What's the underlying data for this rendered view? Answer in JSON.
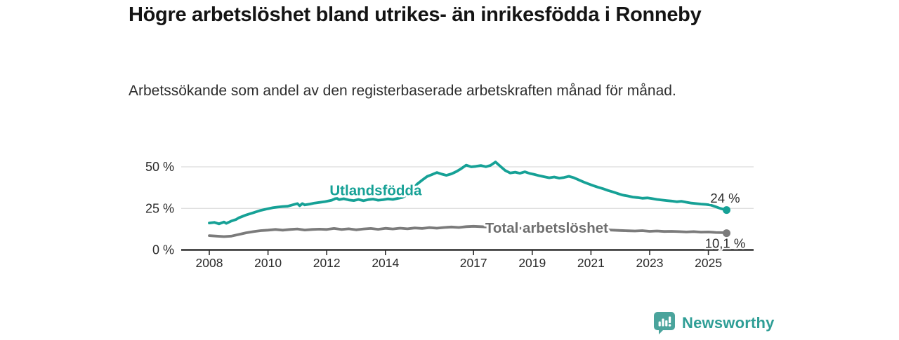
{
  "header": {
    "title": "Högre arbetslöshet bland utrikes- än inrikesfödda i Ronneby",
    "subtitle": "Arbetssökande som andel av den registerbaserade arbetskraften månad för månad."
  },
  "branding": {
    "wordmark": "Newsworthy",
    "logo_icon": "newsworthy-speech-bubble-bar-chart",
    "logo_color": "#4aa49c",
    "wordmark_color": "#2f9e96"
  },
  "colors": {
    "accent_teal": "#16a196",
    "line_gray": "#7b7b7b",
    "label_gray": "#6e6e6e",
    "axis_dark": "#2d2d2d",
    "gridline": "#dcdcdc",
    "text_dark": "#2b2b2b"
  },
  "chart_data": {
    "type": "line",
    "title": "Högre arbetslöshet bland utrikes- än inrikesfödda i Ronneby",
    "subtitle": "Arbetssökande som andel av den registerbaserade arbetskraften månad för månad.",
    "xlabel": "",
    "ylabel": "",
    "x_range": [
      2007.8,
      2026.1
    ],
    "ylim": [
      0,
      56
    ],
    "grid": "horizontal",
    "legend_position": "inline-labels",
    "yticks": [
      {
        "v": 0,
        "label": "0 %"
      },
      {
        "v": 25,
        "label": "25 %"
      },
      {
        "v": 50,
        "label": "50 %"
      }
    ],
    "xticks": [
      2008,
      2010,
      2012,
      2014,
      2017,
      2019,
      2021,
      2023,
      2025
    ],
    "series": [
      {
        "name": "Utlandsfödda",
        "color": "#16a196",
        "end_label": "24 %",
        "end_label_side": "above",
        "label_at": {
          "x": 2012.1,
          "y": 33.0
        },
        "x": [
          2008.0,
          2008.17,
          2008.33,
          2008.5,
          2008.58,
          2008.75,
          2008.92,
          2009.0,
          2009.25,
          2009.5,
          2009.75,
          2010.0,
          2010.17,
          2010.33,
          2010.5,
          2010.67,
          2010.83,
          2011.0,
          2011.08,
          2011.17,
          2011.25,
          2011.42,
          2011.58,
          2011.75,
          2011.92,
          2012.0,
          2012.17,
          2012.33,
          2012.42,
          2012.58,
          2012.75,
          2012.92,
          2013.08,
          2013.25,
          2013.42,
          2013.58,
          2013.75,
          2013.92,
          2014.08,
          2014.25,
          2014.42,
          2014.58,
          2014.75,
          2014.92,
          2015.08,
          2015.25,
          2015.42,
          2015.58,
          2015.75,
          2015.92,
          2016.08,
          2016.25,
          2016.42,
          2016.58,
          2016.75,
          2016.92,
          2017.08,
          2017.25,
          2017.42,
          2017.58,
          2017.75,
          2017.92,
          2018.08,
          2018.25,
          2018.42,
          2018.58,
          2018.75,
          2018.92,
          2019.08,
          2019.25,
          2019.42,
          2019.58,
          2019.75,
          2019.92,
          2020.08,
          2020.25,
          2020.42,
          2020.58,
          2020.75,
          2020.92,
          2021.08,
          2021.25,
          2021.42,
          2021.58,
          2021.75,
          2021.92,
          2022.08,
          2022.25,
          2022.42,
          2022.58,
          2022.75,
          2022.92,
          2023.08,
          2023.25,
          2023.42,
          2023.58,
          2023.75,
          2023.92,
          2024.08,
          2024.25,
          2024.42,
          2024.58,
          2024.75,
          2024.92,
          2025.08,
          2025.25,
          2025.42,
          2025.62
        ],
        "values": [
          16.2,
          16.6,
          15.7,
          16.8,
          16.0,
          17.4,
          18.4,
          19.3,
          21.0,
          22.4,
          23.8,
          24.8,
          25.4,
          25.8,
          26.1,
          26.3,
          27.1,
          27.9,
          26.6,
          27.9,
          27.1,
          27.6,
          28.2,
          28.6,
          29.0,
          29.3,
          29.9,
          31.2,
          30.3,
          30.8,
          30.1,
          29.7,
          30.4,
          29.6,
          30.3,
          30.6,
          29.9,
          30.2,
          30.7,
          30.4,
          31.0,
          31.6,
          33.2,
          36.2,
          39.6,
          42.0,
          44.2,
          45.3,
          46.6,
          45.6,
          44.9,
          45.8,
          47.2,
          48.9,
          51.0,
          50.0,
          50.3,
          50.8,
          50.1,
          50.9,
          52.9,
          50.2,
          47.8,
          46.3,
          46.8,
          46.1,
          47.0,
          46.0,
          45.4,
          44.6,
          44.0,
          43.4,
          43.9,
          43.2,
          43.6,
          44.3,
          43.4,
          42.2,
          40.9,
          39.7,
          38.7,
          37.7,
          36.8,
          35.8,
          34.9,
          33.9,
          33.0,
          32.5,
          31.8,
          31.5,
          31.1,
          31.3,
          30.9,
          30.4,
          30.0,
          29.7,
          29.4,
          29.0,
          29.3,
          28.7,
          28.2,
          27.9,
          27.6,
          27.4,
          27.0,
          26.0,
          24.9,
          24.0
        ]
      },
      {
        "name": "Total arbetslöshet",
        "color": "#7b7b7b",
        "label_color": "#6e6e6e",
        "end_label": "10,1 %",
        "end_label_side": "below",
        "label_at": {
          "x": 2017.4,
          "y": 10.4
        },
        "x": [
          2008.0,
          2008.25,
          2008.5,
          2008.75,
          2009.0,
          2009.25,
          2009.5,
          2009.75,
          2010.0,
          2010.25,
          2010.5,
          2010.75,
          2011.0,
          2011.25,
          2011.5,
          2011.75,
          2012.0,
          2012.25,
          2012.5,
          2012.75,
          2013.0,
          2013.25,
          2013.5,
          2013.75,
          2014.0,
          2014.25,
          2014.5,
          2014.75,
          2015.0,
          2015.25,
          2015.5,
          2015.75,
          2016.0,
          2016.25,
          2016.5,
          2016.75,
          2017.0,
          2017.25,
          2017.5,
          2017.75,
          2018.0,
          2018.25,
          2018.5,
          2018.75,
          2019.0,
          2019.25,
          2019.5,
          2019.75,
          2020.0,
          2020.25,
          2020.5,
          2020.75,
          2021.0,
          2021.25,
          2021.5,
          2021.75,
          2022.0,
          2022.25,
          2022.5,
          2022.75,
          2023.0,
          2023.25,
          2023.5,
          2023.75,
          2024.0,
          2024.25,
          2024.5,
          2024.75,
          2025.0,
          2025.25,
          2025.5,
          2025.62
        ],
        "values": [
          8.6,
          8.3,
          8.0,
          8.3,
          9.3,
          10.3,
          11.0,
          11.6,
          11.9,
          12.3,
          11.9,
          12.3,
          12.6,
          12.0,
          12.3,
          12.5,
          12.3,
          12.9,
          12.3,
          12.7,
          12.1,
          12.6,
          12.9,
          12.4,
          13.0,
          12.6,
          13.1,
          12.7,
          13.2,
          12.9,
          13.4,
          13.1,
          13.5,
          13.8,
          13.5,
          14.0,
          14.2,
          14.0,
          13.8,
          13.9,
          13.7,
          13.4,
          13.1,
          12.9,
          12.7,
          12.5,
          12.4,
          12.6,
          12.9,
          13.2,
          13.0,
          12.8,
          12.5,
          12.3,
          12.1,
          11.9,
          11.7,
          11.5,
          11.4,
          11.6,
          11.2,
          11.4,
          11.1,
          11.2,
          11.0,
          10.8,
          11.0,
          10.7,
          10.8,
          10.5,
          10.4,
          10.1
        ]
      }
    ]
  }
}
